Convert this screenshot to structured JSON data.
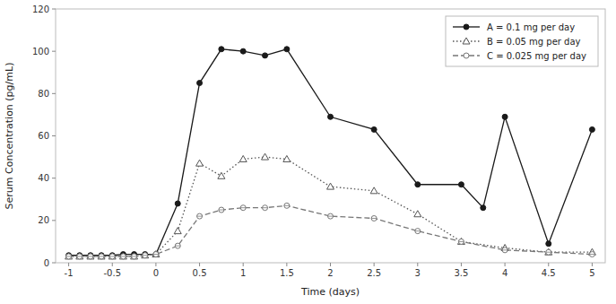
{
  "chart_data": {
    "type": "line",
    "xlabel": "Time (days)",
    "ylabel": "Serum Concentration (pg/mL)",
    "xlim": [
      -1.15,
      5.15
    ],
    "xticks": [
      -1,
      -0.5,
      0,
      0.5,
      1,
      1.5,
      2,
      2.5,
      3,
      3.5,
      4,
      4.5,
      5
    ],
    "ylim": [
      0,
      120
    ],
    "yticks": [
      0,
      20,
      40,
      60,
      80,
      100,
      120
    ],
    "grid": false,
    "legend": "upper right",
    "series": [
      {
        "name": "A = 0.1 mg per day",
        "color": "#1a1a1a",
        "marker": "circle",
        "line_style": "solid",
        "x": [
          -1,
          -0.875,
          -0.75,
          -0.625,
          -0.5,
          -0.375,
          -0.25,
          -0.125,
          0,
          0.25,
          0.5,
          0.75,
          1,
          1.25,
          1.5,
          2,
          2.5,
          3,
          3.5,
          3.75,
          4,
          4.5,
          5
        ],
        "values": [
          3.5,
          3.5,
          3.5,
          3.5,
          3.5,
          4,
          4,
          4,
          4,
          28,
          85,
          101,
          100,
          98,
          101,
          69,
          63,
          37,
          37,
          26,
          69,
          9,
          63
        ]
      },
      {
        "name": "B = 0.05 mg per day",
        "color": "#555555",
        "marker": "triangle",
        "line_style": "dotted",
        "x": [
          -1,
          -0.875,
          -0.75,
          -0.625,
          -0.5,
          -0.375,
          -0.25,
          -0.125,
          0,
          0.25,
          0.5,
          0.75,
          1,
          1.25,
          1.5,
          2,
          2.5,
          3,
          3.5,
          4,
          4.5,
          5
        ],
        "values": [
          3,
          3,
          3,
          3,
          3,
          3,
          3,
          3.5,
          4,
          15,
          47,
          41,
          49,
          50,
          49,
          36,
          34,
          23,
          10,
          7,
          5,
          5
        ]
      },
      {
        "name": "C = 0.025 mg per day",
        "color": "#777777",
        "marker": "circle",
        "line_style": "dashed",
        "x": [
          -1,
          -0.875,
          -0.75,
          -0.625,
          -0.5,
          -0.375,
          -0.25,
          -0.125,
          0,
          0.25,
          0.5,
          0.75,
          1,
          1.25,
          1.5,
          2,
          2.5,
          3,
          3.5,
          4,
          4.5,
          5
        ],
        "values": [
          3,
          3,
          3,
          3,
          3,
          3,
          3,
          3.5,
          4,
          8,
          22,
          25,
          26,
          26,
          27,
          22,
          21,
          15,
          10,
          6,
          5,
          4
        ]
      }
    ]
  }
}
